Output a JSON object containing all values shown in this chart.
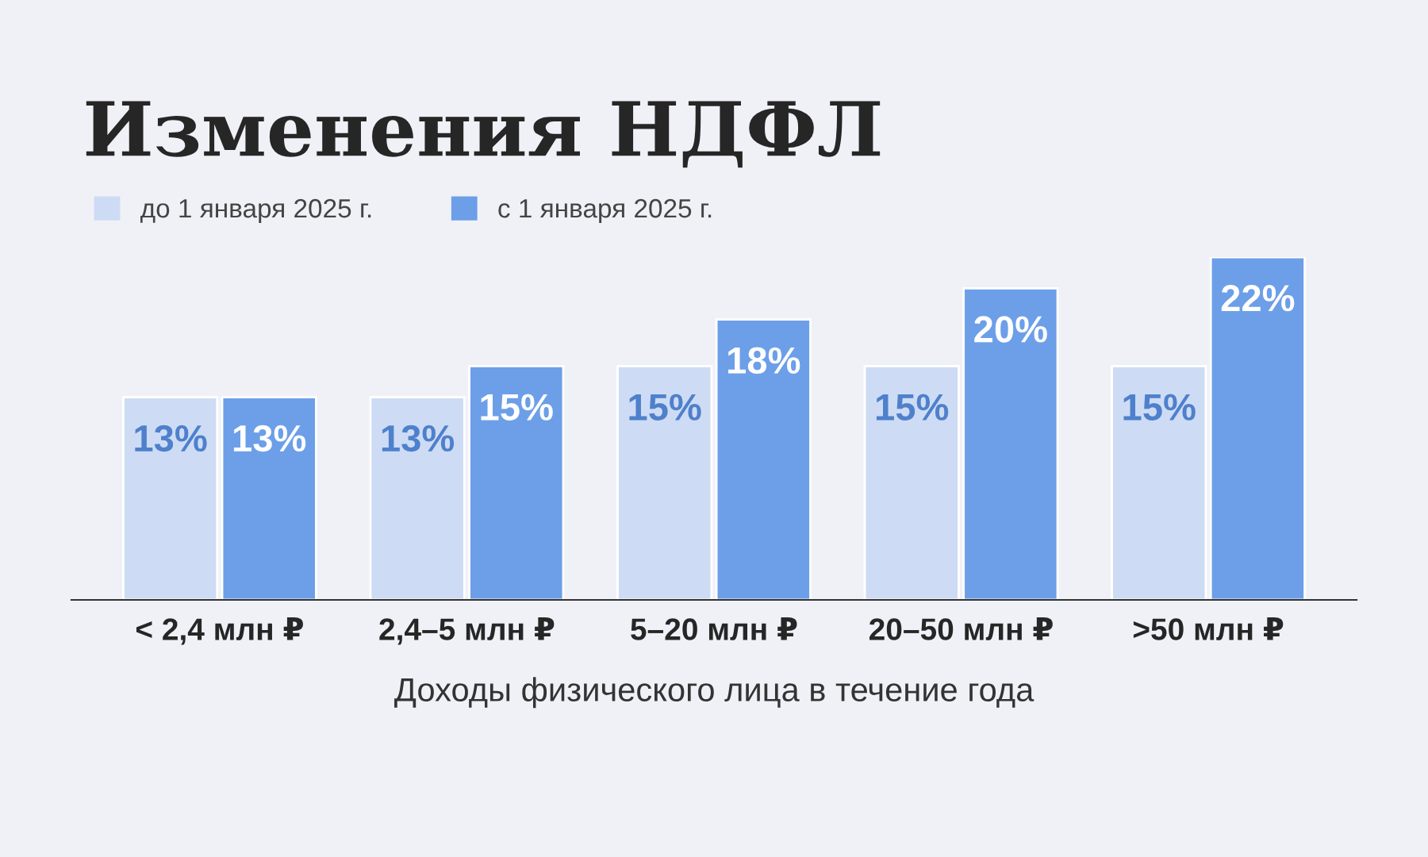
{
  "chart_data": {
    "type": "bar",
    "title": "Изменения НДФЛ",
    "xlabel": "Доходы физического лица в течение года",
    "categories": [
      "< 2,4 млн ₽",
      "2,4–5 млн ₽",
      "5–20 млн ₽",
      "20–50 млн ₽",
      ">50 млн ₽"
    ],
    "series": [
      {
        "name": "до 1 января 2025 г.",
        "color": "#cddcf4",
        "values": [
          13,
          13,
          15,
          15,
          15
        ],
        "value_labels": [
          "13%",
          "13%",
          "15%",
          "15%",
          "15%"
        ]
      },
      {
        "name": "с 1 января 2025 г.",
        "color": "#6c9fe8",
        "values": [
          13,
          15,
          18,
          20,
          22
        ],
        "value_labels": [
          "13%",
          "15%",
          "18%",
          "20%",
          "22%"
        ]
      }
    ],
    "legend": "top left",
    "grid": false
  }
}
